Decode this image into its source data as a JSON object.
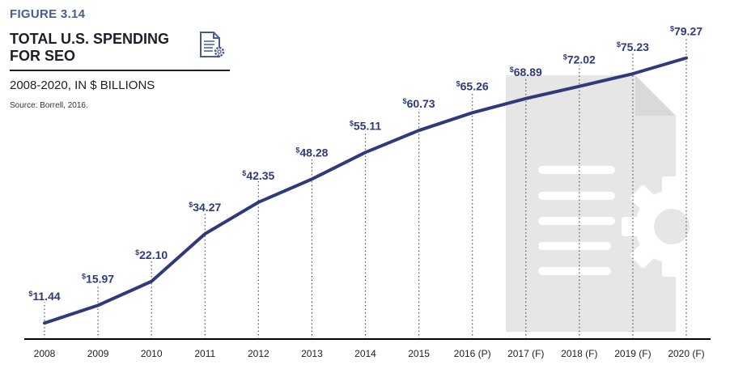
{
  "figure_label": "FIGURE 3.14",
  "title_line1": "TOTAL U.S. SPENDING",
  "title_line2": "FOR SEO",
  "subtitle": "2008-2020, IN $ BILLIONS",
  "source": "Source: Borrell, 2016.",
  "colors": {
    "line": "#2e3a7a",
    "label": "#2e3a7a",
    "axis": "#000000",
    "decor": "#e6e6e6",
    "figure": "#4a5d8f"
  },
  "icons": [
    "document-gear-icon",
    "document-gear-watermark-icon"
  ],
  "chart_data": {
    "type": "line",
    "title": "TOTAL U.S. SPENDING FOR SEO",
    "subtitle": "2008-2020, IN $ BILLIONS",
    "categories": [
      "2008",
      "2009",
      "2010",
      "2011",
      "2012",
      "2013",
      "2014",
      "2015",
      "2016 (P)",
      "2017 (F)",
      "2018 (F)",
      "2019 (F)",
      "2020 (F)"
    ],
    "values": [
      11.44,
      15.97,
      22.1,
      34.27,
      42.35,
      48.28,
      55.11,
      60.73,
      65.26,
      68.89,
      72.02,
      75.23,
      79.27
    ],
    "labels": [
      "11.44",
      "15.97",
      "22.10",
      "34.27",
      "42.35",
      "48.28",
      "55.11",
      "60.73",
      "65.26",
      "68.89",
      "72.02",
      "75.23",
      "79.27"
    ],
    "label_prefix": "$",
    "xlabel": "",
    "ylabel": "",
    "grid": "vertical dotted lines per year",
    "legend": "none"
  }
}
